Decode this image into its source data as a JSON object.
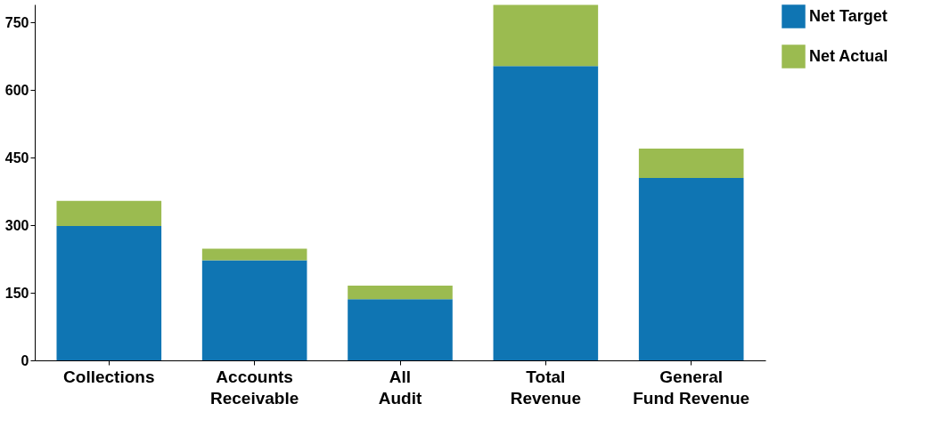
{
  "chart_data": {
    "type": "bar",
    "stacked": true,
    "categories": [
      "Collections",
      "Accounts\nReceivable",
      "All\nAudit",
      "Total\nRevenue",
      "General\nFund Revenue"
    ],
    "series": [
      {
        "name": "Net Target",
        "color": "#0f75b3",
        "values": [
          298,
          222,
          136,
          653,
          405
        ]
      },
      {
        "name": "Net Actual",
        "color": "#9bbb50",
        "values": [
          56,
          26,
          30,
          136,
          65
        ]
      }
    ],
    "ylim": [
      0,
      790
    ],
    "yticks": [
      0,
      150,
      300,
      450,
      600,
      750
    ],
    "grid": false,
    "legend": "right"
  }
}
